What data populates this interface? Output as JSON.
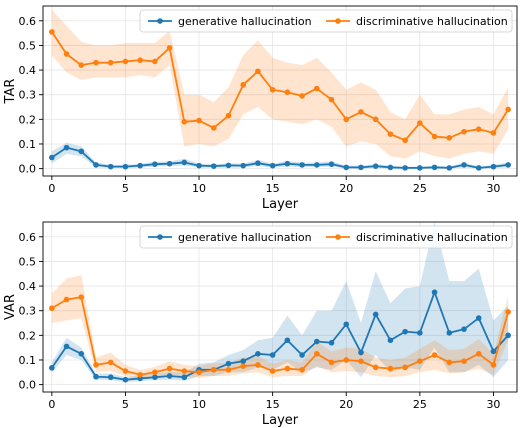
{
  "colors": {
    "blue": "#1f77b4",
    "orange": "#ff7f0e",
    "grid": "#e5e5e5",
    "axis": "#000000"
  },
  "chart_data": [
    {
      "type": "line",
      "xlabel": "Layer",
      "ylabel": "TAR",
      "xlim": [
        -0.6,
        31.6
      ],
      "ylim": [
        -0.03,
        0.66
      ],
      "xticks": [
        0,
        5,
        10,
        15,
        20,
        25,
        30
      ],
      "yticks": [
        0.0,
        0.1,
        0.2,
        0.3,
        0.4,
        0.5,
        0.6
      ],
      "grid": true,
      "legend_position": "top",
      "x": [
        0,
        1,
        2,
        3,
        4,
        5,
        6,
        7,
        8,
        9,
        10,
        11,
        12,
        13,
        14,
        15,
        16,
        17,
        18,
        19,
        20,
        21,
        22,
        23,
        24,
        25,
        26,
        27,
        28,
        29,
        30,
        31
      ],
      "series": [
        {
          "name": "generative hallucination",
          "color": "#1f77b4",
          "values": [
            0.045,
            0.085,
            0.07,
            0.015,
            0.008,
            0.008,
            0.012,
            0.018,
            0.02,
            0.025,
            0.012,
            0.01,
            0.013,
            0.012,
            0.022,
            0.012,
            0.02,
            0.015,
            0.015,
            0.018,
            0.005,
            0.005,
            0.01,
            0.005,
            0.003,
            0.003,
            0.005,
            0.003,
            0.015,
            0.003,
            0.008,
            0.015
          ],
          "lower": [
            0.02,
            0.06,
            0.05,
            0.005,
            0.002,
            0.002,
            0.004,
            0.008,
            0.01,
            0.012,
            0.004,
            0.003,
            0.004,
            0.004,
            0.01,
            0.004,
            0.008,
            0.006,
            0.006,
            0.008,
            0.0,
            0.0,
            0.003,
            0.0,
            0.0,
            0.0,
            0.0,
            0.0,
            0.005,
            0.0,
            0.002,
            0.005
          ],
          "upper": [
            0.07,
            0.105,
            0.09,
            0.025,
            0.015,
            0.015,
            0.02,
            0.028,
            0.03,
            0.04,
            0.02,
            0.018,
            0.022,
            0.02,
            0.035,
            0.02,
            0.032,
            0.025,
            0.025,
            0.03,
            0.012,
            0.012,
            0.018,
            0.012,
            0.008,
            0.008,
            0.012,
            0.008,
            0.025,
            0.008,
            0.015,
            0.025
          ]
        },
        {
          "name": "discriminative  hallucination",
          "color": "#ff7f0e",
          "values": [
            0.555,
            0.465,
            0.42,
            0.43,
            0.43,
            0.435,
            0.44,
            0.435,
            0.49,
            0.19,
            0.195,
            0.165,
            0.215,
            0.34,
            0.395,
            0.32,
            0.31,
            0.295,
            0.325,
            0.28,
            0.2,
            0.23,
            0.2,
            0.14,
            0.115,
            0.185,
            0.13,
            0.125,
            0.15,
            0.16,
            0.145,
            0.24
          ],
          "lower": [
            0.46,
            0.39,
            0.36,
            0.37,
            0.37,
            0.37,
            0.38,
            0.37,
            0.42,
            0.09,
            0.1,
            0.09,
            0.12,
            0.22,
            0.25,
            0.2,
            0.19,
            0.18,
            0.2,
            0.17,
            0.09,
            0.11,
            0.1,
            0.05,
            0.04,
            0.07,
            0.05,
            0.04,
            0.06,
            0.07,
            0.06,
            0.16
          ],
          "upper": [
            0.645,
            0.58,
            0.515,
            0.5,
            0.5,
            0.51,
            0.51,
            0.51,
            0.56,
            0.3,
            0.3,
            0.27,
            0.33,
            0.46,
            0.52,
            0.45,
            0.43,
            0.42,
            0.45,
            0.39,
            0.32,
            0.35,
            0.32,
            0.23,
            0.2,
            0.3,
            0.22,
            0.22,
            0.24,
            0.25,
            0.22,
            0.33
          ]
        }
      ]
    },
    {
      "type": "line",
      "xlabel": "Layer",
      "ylabel": "VAR",
      "xlim": [
        -0.6,
        31.6
      ],
      "ylim": [
        -0.03,
        0.66
      ],
      "xticks": [
        0,
        5,
        10,
        15,
        20,
        25,
        30
      ],
      "yticks": [
        0.0,
        0.1,
        0.2,
        0.3,
        0.4,
        0.5,
        0.6
      ],
      "grid": true,
      "legend_position": "top",
      "x": [
        0,
        1,
        2,
        3,
        4,
        5,
        6,
        7,
        8,
        9,
        10,
        11,
        12,
        13,
        14,
        15,
        16,
        17,
        18,
        19,
        20,
        21,
        22,
        23,
        24,
        25,
        26,
        27,
        28,
        29,
        30,
        31
      ],
      "series": [
        {
          "name": "generative hallucination",
          "color": "#1f77b4",
          "values": [
            0.068,
            0.155,
            0.125,
            0.032,
            0.03,
            0.02,
            0.025,
            0.03,
            0.035,
            0.03,
            0.06,
            0.06,
            0.085,
            0.095,
            0.125,
            0.12,
            0.18,
            0.12,
            0.175,
            0.17,
            0.245,
            0.13,
            0.285,
            0.18,
            0.215,
            0.21,
            0.375,
            0.21,
            0.225,
            0.27,
            0.135,
            0.2
          ],
          "lower": [
            0.05,
            0.12,
            0.1,
            0.02,
            0.018,
            0.01,
            0.014,
            0.018,
            0.02,
            0.015,
            0.035,
            0.035,
            0.05,
            0.05,
            0.07,
            0.06,
            0.09,
            0.05,
            0.07,
            0.06,
            0.1,
            0.03,
            0.12,
            0.05,
            0.07,
            0.06,
            0.15,
            0.05,
            0.05,
            0.08,
            0.03,
            0.1
          ],
          "upper": [
            0.09,
            0.19,
            0.15,
            0.045,
            0.045,
            0.03,
            0.038,
            0.045,
            0.052,
            0.048,
            0.085,
            0.09,
            0.12,
            0.14,
            0.18,
            0.19,
            0.28,
            0.2,
            0.3,
            0.3,
            0.42,
            0.25,
            0.46,
            0.33,
            0.39,
            0.4,
            0.66,
            0.42,
            0.42,
            0.47,
            0.26,
            0.32
          ]
        },
        {
          "name": "discriminative  hallucination",
          "color": "#ff7f0e",
          "values": [
            0.31,
            0.345,
            0.355,
            0.08,
            0.09,
            0.055,
            0.04,
            0.05,
            0.065,
            0.055,
            0.05,
            0.06,
            0.06,
            0.075,
            0.08,
            0.055,
            0.065,
            0.06,
            0.125,
            0.09,
            0.1,
            0.095,
            0.07,
            0.065,
            0.07,
            0.095,
            0.12,
            0.09,
            0.095,
            0.125,
            0.08,
            0.295
          ],
          "lower": [
            0.25,
            0.26,
            0.27,
            0.05,
            0.055,
            0.035,
            0.022,
            0.03,
            0.04,
            0.032,
            0.028,
            0.035,
            0.035,
            0.045,
            0.05,
            0.03,
            0.035,
            0.035,
            0.075,
            0.05,
            0.055,
            0.05,
            0.035,
            0.03,
            0.035,
            0.05,
            0.06,
            0.045,
            0.05,
            0.065,
            0.04,
            0.18
          ],
          "upper": [
            0.37,
            0.43,
            0.445,
            0.11,
            0.13,
            0.08,
            0.06,
            0.072,
            0.095,
            0.08,
            0.075,
            0.088,
            0.088,
            0.11,
            0.115,
            0.085,
            0.1,
            0.09,
            0.175,
            0.135,
            0.15,
            0.145,
            0.11,
            0.1,
            0.11,
            0.145,
            0.18,
            0.14,
            0.145,
            0.185,
            0.125,
            0.36
          ]
        }
      ]
    }
  ]
}
